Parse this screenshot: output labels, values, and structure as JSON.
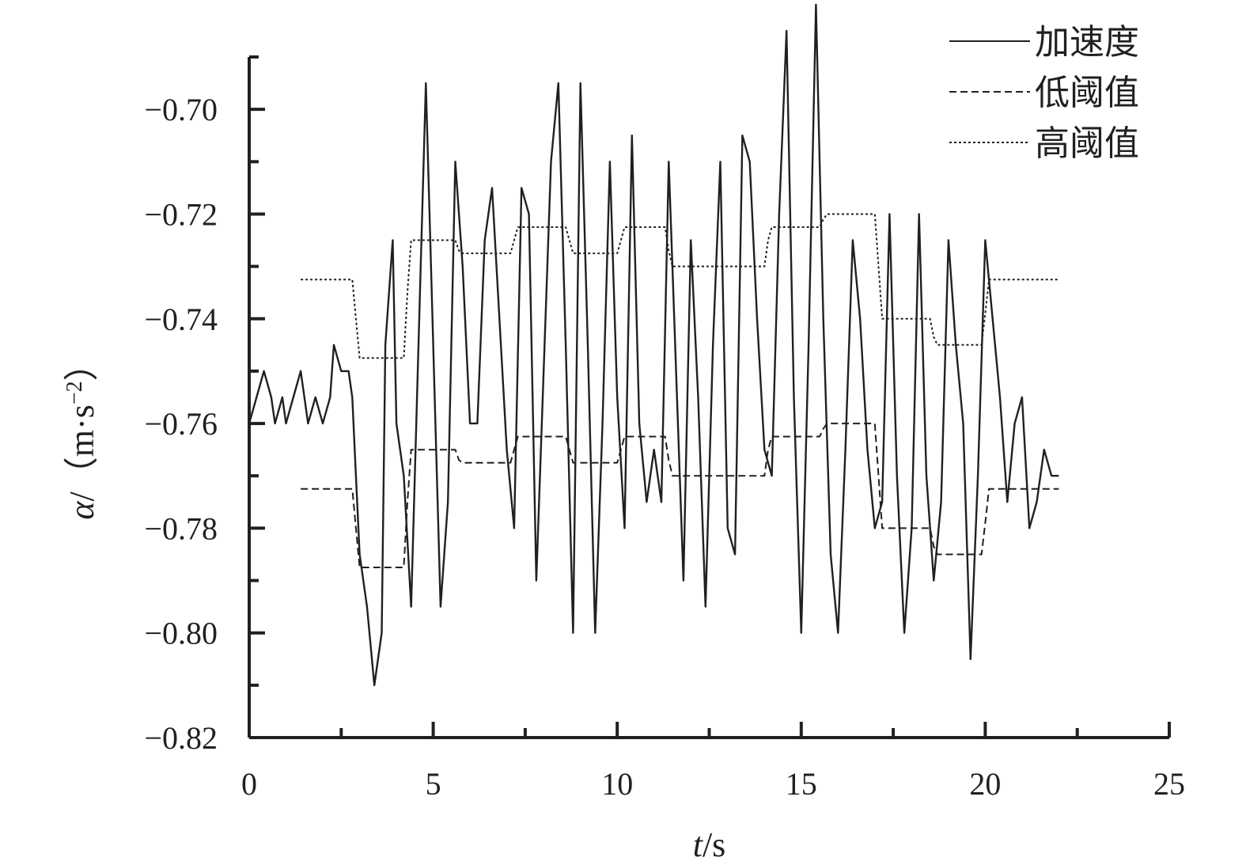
{
  "chart_data": {
    "type": "line",
    "xlabel": "t/s",
    "xlabel_italic": "t",
    "xlabel_unit": "/s",
    "ylabel": "α/（m·s⁻²）",
    "ylabel_symbol": "α",
    "ylabel_unit": "/（m·s",
    "ylabel_exp": "−2",
    "ylabel_close": "）",
    "xlim": [
      0,
      25
    ],
    "ylim": [
      -0.82,
      -0.69
    ],
    "x_ticks": [
      0,
      5,
      10,
      15,
      20,
      25
    ],
    "x_tick_labels": [
      "0",
      "5",
      "10",
      "15",
      "20",
      "25"
    ],
    "y_ticks": [
      -0.7,
      -0.72,
      -0.74,
      -0.76,
      -0.78,
      -0.8,
      -0.82
    ],
    "y_tick_labels": [
      "−0.70",
      "−0.72",
      "−0.74",
      "−0.76",
      "−0.78",
      "−0.80",
      "−0.82"
    ],
    "grid": false,
    "legend_position": "top-right",
    "series": [
      {
        "name": "加速度",
        "style": "solid",
        "x": [
          0,
          0.2,
          0.4,
          0.6,
          0.7,
          0.9,
          1.0,
          1.2,
          1.4,
          1.6,
          1.8,
          2.0,
          2.2,
          2.3,
          2.5,
          2.7,
          2.8,
          2.9,
          3.0,
          3.2,
          3.4,
          3.6,
          3.7,
          3.9,
          4.0,
          4.2,
          4.4,
          4.6,
          4.8,
          5.0,
          5.2,
          5.4,
          5.6,
          5.8,
          6.0,
          6.2,
          6.4,
          6.6,
          6.8,
          7.0,
          7.2,
          7.4,
          7.6,
          7.8,
          8.0,
          8.2,
          8.4,
          8.6,
          8.8,
          9.0,
          9.2,
          9.4,
          9.6,
          9.8,
          10.0,
          10.2,
          10.4,
          10.6,
          10.8,
          11.0,
          11.2,
          11.4,
          11.6,
          11.8,
          12.0,
          12.2,
          12.4,
          12.6,
          12.8,
          13.0,
          13.2,
          13.4,
          13.6,
          13.8,
          14.0,
          14.2,
          14.4,
          14.6,
          14.8,
          15.0,
          15.2,
          15.4,
          15.6,
          15.8,
          16.0,
          16.2,
          16.4,
          16.6,
          16.8,
          17.0,
          17.2,
          17.4,
          17.6,
          17.8,
          18.0,
          18.2,
          18.4,
          18.6,
          18.8,
          19.0,
          19.2,
          19.4,
          19.6,
          19.8,
          20.0,
          20.2,
          20.4,
          20.6,
          20.8,
          21.0,
          21.2,
          21.4,
          21.6,
          21.8,
          22.0
        ],
        "y": [
          -0.76,
          -0.755,
          -0.75,
          -0.755,
          -0.76,
          -0.755,
          -0.76,
          -0.755,
          -0.75,
          -0.76,
          -0.755,
          -0.76,
          -0.755,
          -0.745,
          -0.75,
          -0.75,
          -0.755,
          -0.77,
          -0.785,
          -0.795,
          -0.81,
          -0.8,
          -0.745,
          -0.725,
          -0.76,
          -0.77,
          -0.795,
          -0.745,
          -0.695,
          -0.745,
          -0.795,
          -0.775,
          -0.71,
          -0.73,
          -0.76,
          -0.76,
          -0.725,
          -0.715,
          -0.74,
          -0.765,
          -0.78,
          -0.715,
          -0.72,
          -0.79,
          -0.75,
          -0.71,
          -0.695,
          -0.745,
          -0.8,
          -0.695,
          -0.745,
          -0.8,
          -0.76,
          -0.71,
          -0.755,
          -0.78,
          -0.705,
          -0.76,
          -0.775,
          -0.765,
          -0.775,
          -0.71,
          -0.75,
          -0.79,
          -0.725,
          -0.755,
          -0.795,
          -0.745,
          -0.71,
          -0.78,
          -0.785,
          -0.705,
          -0.71,
          -0.74,
          -0.765,
          -0.77,
          -0.72,
          -0.685,
          -0.755,
          -0.8,
          -0.745,
          -0.68,
          -0.74,
          -0.785,
          -0.8,
          -0.765,
          -0.725,
          -0.74,
          -0.765,
          -0.78,
          -0.775,
          -0.72,
          -0.77,
          -0.8,
          -0.78,
          -0.72,
          -0.77,
          -0.79,
          -0.775,
          -0.725,
          -0.745,
          -0.76,
          -0.805,
          -0.77,
          -0.725,
          -0.74,
          -0.755,
          -0.775,
          -0.76,
          -0.755,
          -0.78,
          -0.775,
          -0.765,
          -0.77,
          -0.77
        ]
      },
      {
        "name": "低阈值",
        "style": "dashed",
        "x": [
          1.4,
          2.8,
          2.9,
          3.0,
          3.1,
          4.2,
          4.3,
          4.4,
          4.5,
          5.6,
          5.7,
          5.8,
          5.9,
          7.1,
          7.2,
          7.3,
          7.4,
          8.6,
          8.7,
          8.8,
          8.9,
          10.0,
          10.1,
          10.2,
          10.3,
          11.3,
          11.4,
          11.5,
          11.6,
          14.0,
          14.1,
          14.2,
          14.3,
          15.5,
          15.6,
          15.7,
          15.8,
          17.0,
          17.1,
          17.2,
          17.3,
          18.5,
          18.6,
          18.7,
          18.8,
          19.9,
          20.0,
          20.1,
          22.0
        ],
        "y": [
          -0.7725,
          -0.7725,
          -0.78,
          -0.7875,
          -0.7875,
          -0.7875,
          -0.775,
          -0.765,
          -0.765,
          -0.765,
          -0.767,
          -0.7675,
          -0.7675,
          -0.7675,
          -0.765,
          -0.7625,
          -0.7625,
          -0.7625,
          -0.765,
          -0.7675,
          -0.7675,
          -0.7675,
          -0.765,
          -0.7625,
          -0.7625,
          -0.7625,
          -0.767,
          -0.77,
          -0.77,
          -0.77,
          -0.765,
          -0.7625,
          -0.7625,
          -0.7625,
          -0.761,
          -0.76,
          -0.76,
          -0.76,
          -0.77,
          -0.78,
          -0.78,
          -0.78,
          -0.7835,
          -0.785,
          -0.785,
          -0.785,
          -0.779,
          -0.7725,
          -0.7725
        ]
      },
      {
        "name": "高阈值",
        "style": "dotted",
        "x": [
          1.4,
          2.8,
          2.9,
          3.0,
          3.1,
          4.2,
          4.3,
          4.4,
          4.5,
          5.6,
          5.7,
          5.8,
          5.9,
          7.1,
          7.2,
          7.3,
          7.4,
          8.6,
          8.7,
          8.8,
          8.9,
          10.0,
          10.1,
          10.2,
          10.3,
          11.3,
          11.4,
          11.5,
          11.6,
          14.0,
          14.1,
          14.2,
          14.3,
          15.5,
          15.6,
          15.7,
          15.8,
          17.0,
          17.1,
          17.2,
          17.3,
          18.5,
          18.6,
          18.7,
          18.8,
          19.9,
          20.0,
          20.1,
          22.0
        ],
        "y": [
          -0.7325,
          -0.7325,
          -0.74,
          -0.7475,
          -0.7475,
          -0.7475,
          -0.735,
          -0.725,
          -0.725,
          -0.725,
          -0.727,
          -0.7275,
          -0.7275,
          -0.7275,
          -0.725,
          -0.7225,
          -0.7225,
          -0.7225,
          -0.725,
          -0.7275,
          -0.7275,
          -0.7275,
          -0.725,
          -0.7225,
          -0.7225,
          -0.7225,
          -0.727,
          -0.73,
          -0.73,
          -0.73,
          -0.725,
          -0.7225,
          -0.7225,
          -0.7225,
          -0.721,
          -0.72,
          -0.72,
          -0.72,
          -0.73,
          -0.74,
          -0.74,
          -0.74,
          -0.7435,
          -0.745,
          -0.745,
          -0.745,
          -0.739,
          -0.7325,
          -0.7325
        ]
      }
    ]
  }
}
